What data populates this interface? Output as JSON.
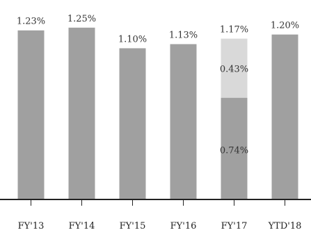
{
  "chart_data": {
    "type": "bar",
    "stacked": true,
    "categories": [
      "FY'13",
      "FY'14",
      "FY'15",
      "FY'16",
      "FY'17",
      "YTD'18"
    ],
    "totals": [
      1.23,
      1.25,
      1.1,
      1.13,
      1.17,
      1.2
    ],
    "total_labels": [
      "1.23%",
      "1.25%",
      "1.10%",
      "1.13%",
      "1.17%",
      "1.20%"
    ],
    "series": [
      {
        "values": [
          1.23,
          1.25,
          1.1,
          1.13,
          0.74,
          1.2
        ],
        "color": "#a0a0a0"
      },
      {
        "values": [
          0,
          0,
          0,
          0,
          0.43,
          0
        ],
        "color": "#d9d9d9"
      }
    ],
    "segment_labels": [
      {
        "category": "FY'17",
        "segment": 1,
        "text": "0.43%"
      },
      {
        "category": "FY'17",
        "segment": 0,
        "text": "0.74%"
      }
    ],
    "ylim": [
      0,
      1.35
    ],
    "axis_color": "#222222",
    "grid": false,
    "title": "",
    "xlabel": "",
    "ylabel": ""
  }
}
